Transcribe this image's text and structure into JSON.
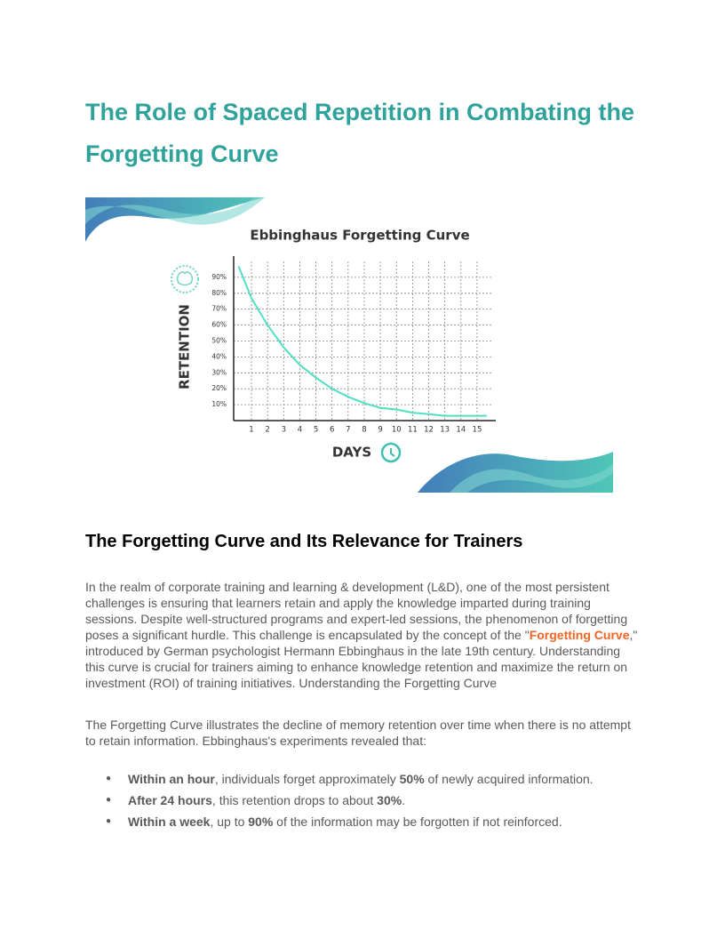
{
  "header": {
    "title": "The Role of Spaced Repetition in Combating the Forgetting Curve"
  },
  "chart_data": {
    "type": "line",
    "title": "Ebbinghaus Forgetting Curve",
    "y_label": "RETENTION",
    "x_label": "DAYS",
    "x": [
      0.2,
      1,
      2,
      3,
      4,
      5,
      6,
      7,
      8,
      9,
      10,
      11,
      12,
      13,
      14,
      15,
      15.6
    ],
    "values": [
      97,
      77,
      60,
      46,
      35,
      27,
      20,
      15,
      11,
      8,
      7,
      5,
      4,
      3,
      3,
      3,
      3
    ],
    "color": "#4fe0c4",
    "xlim": [
      0,
      16
    ],
    "xticks": [
      1,
      2,
      3,
      4,
      5,
      6,
      7,
      8,
      9,
      10,
      11,
      12,
      13,
      14,
      15
    ],
    "ylim": [
      0,
      100
    ],
    "yticks": [
      {
        "value": 10,
        "label": "10%"
      },
      {
        "value": 20,
        "label": "20%"
      },
      {
        "value": 30,
        "label": "30%"
      },
      {
        "value": 40,
        "label": "40%"
      },
      {
        "value": 50,
        "label": "50%"
      },
      {
        "value": 60,
        "label": "60%"
      },
      {
        "value": 70,
        "label": "70%"
      },
      {
        "value": 80,
        "label": "80%"
      },
      {
        "value": 90,
        "label": "90%"
      }
    ],
    "grid": true
  },
  "section": {
    "heading": "The Forgetting Curve and Its Relevance for Trainers",
    "paragraph1": {
      "before": "In the realm of corporate training and learning & development (L&D), one of the most persistent challenges is ensuring that learners retain and apply the knowledge imparted during training sessions. Despite well-structured programs and expert-led sessions, the phenomenon of forgetting poses a significant hurdle. This challenge is encapsulated by the concept of the \"",
      "highlight": "Forgetting Curve",
      "after": ",\" introduced by German psychologist Hermann Ebbinghaus in the late 19th century. Understanding this curve is crucial for trainers aiming to enhance knowledge retention and maximize the return on investment (ROI) of training initiatives. Understanding the Forgetting Curve"
    },
    "paragraph2": "The Forgetting Curve illustrates the decline of memory retention over time when there is no attempt to retain information. Ebbinghaus's experiments revealed that:",
    "list": [
      {
        "lead": "Within an hour",
        "text1": ", individuals forget approximately ",
        "figure": "50%",
        "text2": " of newly acquired information."
      },
      {
        "lead": "After 24 hours",
        "text1": ", this retention drops to about ",
        "figure": "30%",
        "text2": "."
      },
      {
        "lead": "Within a week",
        "text1": ", up to ",
        "figure": "90%",
        "text2": " of the information may be forgotten if not reinforced."
      }
    ]
  }
}
